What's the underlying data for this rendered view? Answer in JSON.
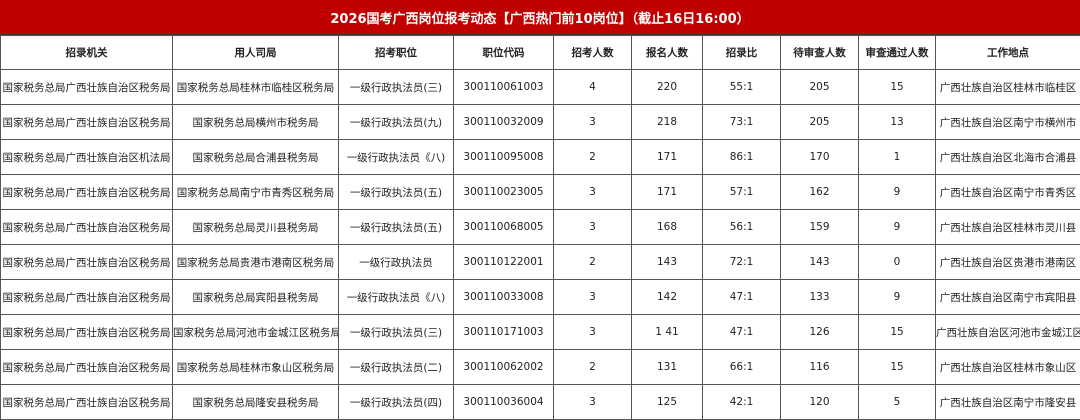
{
  "title": "2026国考广西岗位报考动态【广西热门前10岗位】（截止16日16:00）",
  "colors": {
    "title_bg": "#c00000",
    "title_text": "#ffffff"
  },
  "headers": [
    "招录机关",
    "用人司局",
    "招考职位",
    "职位代码",
    "招考人数",
    "报名人数",
    "招录比",
    "待审查人数",
    "审查通过人数",
    "工作地点"
  ],
  "rows": [
    [
      "国家税务总局广西壮族自治区税务局",
      "国家税务总局桂林市临桂区税务局",
      "一级行政执法员(三)",
      "300110061003",
      "4",
      "220",
      "55:1",
      "205",
      "15",
      "广西壮族自治区桂林市临桂区"
    ],
    [
      "国家税务总局广西壮族自治区税务局",
      "国家税务总局横州市税务局",
      "一级行政执法员(九)",
      "300110032009",
      "3",
      "218",
      "73:1",
      "205",
      "13",
      "广西壮族自治区南宁市横州市"
    ],
    [
      "国家税务总局广西壮族自治区机法局",
      "国家税务总局合浦县税务局",
      "一级行政执法员《八)",
      "300110095008",
      "2",
      "171",
      "86:1",
      "170",
      "1",
      "广西壮族自治区北海市合浦县"
    ],
    [
      "国家税务总局广西壮族自治区税务局",
      "国家税务总局南宁市青秀区税务局",
      "一级行政执法员(五)",
      "300110023005",
      "3",
      "171",
      "57:1",
      "162",
      "9",
      "广西壮族自治区南宁市青秀区"
    ],
    [
      "国家税务总局广西壮族自治区税务局",
      "国家税务总局灵川县税务局",
      "一级行政执法员(五)",
      "300110068005",
      "3",
      "168",
      "56:1",
      "159",
      "9",
      "广西壮族自治区桂林市灵川县"
    ],
    [
      "国家税务总局广西壮族自治区税务局",
      "国家税务总局贵港市港南区税务局",
      "一级行政执法员",
      "300110122001",
      "2",
      "143",
      "72:1",
      "143",
      "0",
      "广西壮族自治区贵港市港南区"
    ],
    [
      "国家税务总局广西壮族自治区税务局",
      "国家税务总局宾阳县税务局",
      "一级行政执法员《八)",
      "300110033008",
      "3",
      "142",
      "47:1",
      "133",
      "9",
      "广西壮族自治区南宁市宾阳县"
    ],
    [
      "国家税务总局广西壮族自治区税务局",
      "国家税务总局河池市金城江区税务局",
      "一级行政执法员(三)",
      "300110171003",
      "3",
      "1 41",
      "47:1",
      "126",
      "15",
      "广西壮族自治区河池市金城江区"
    ],
    [
      "国家税务总局广西壮族自治区税务局",
      "国家税务总局桂林市象山区税务局",
      "一级行政执法员(二)",
      "300110062002",
      "2",
      "131",
      "66:1",
      "116",
      "15",
      "广西壮族自治区桂林市象山区"
    ],
    [
      "国家税务总局广西壮族自治区税务局",
      "国家税务总局隆安县税务局",
      "一级行政执法员(四)",
      "300110036004",
      "3",
      "125",
      "42:1",
      "120",
      "5",
      "广西壮族自治区南宁市隆安县"
    ]
  ]
}
